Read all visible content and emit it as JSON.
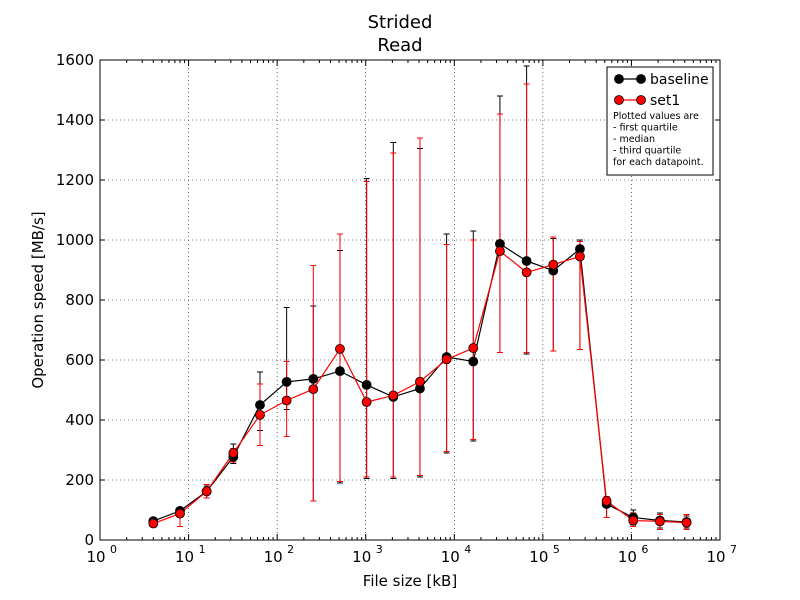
{
  "chart_data": {
    "type": "line",
    "title": [
      "Strided",
      "Read"
    ],
    "xlabel": "File size [kB]",
    "ylabel": "Operation speed [MB/s]",
    "xscale": "log",
    "xlim": [
      1,
      10000000
    ],
    "ylim": [
      0,
      1600
    ],
    "x_ticks": [
      1,
      10,
      100,
      1000,
      10000,
      100000,
      1000000,
      10000000
    ],
    "x_tick_labels": [
      {
        "base": "10",
        "exp": "0"
      },
      {
        "base": "10",
        "exp": "1"
      },
      {
        "base": "10",
        "exp": "2"
      },
      {
        "base": "10",
        "exp": "3"
      },
      {
        "base": "10",
        "exp": "4"
      },
      {
        "base": "10",
        "exp": "5"
      },
      {
        "base": "10",
        "exp": "6"
      },
      {
        "base": "10",
        "exp": "7"
      }
    ],
    "y_ticks": [
      0,
      200,
      400,
      600,
      800,
      1000,
      1200,
      1400,
      1600
    ],
    "grid": true,
    "legend_position": "top-right",
    "legend_note": [
      "Plotted values are",
      " - first quartile",
      " - median",
      " - third quartile",
      "for each datapoint."
    ],
    "x": [
      4,
      8,
      16,
      32,
      64,
      128,
      256,
      512,
      1024,
      2048,
      4096,
      8192,
      16384,
      32768,
      65536,
      131072,
      262144,
      524288,
      1048576,
      2097152,
      4194304
    ],
    "series": [
      {
        "name": "baseline",
        "color": "#000000",
        "median": [
          63,
          97,
          162,
          277,
          450,
          527,
          537,
          563,
          517,
          477,
          505,
          610,
          595,
          987,
          930,
          898,
          970,
          120,
          75,
          65,
          60
        ],
        "q1": [
          55,
          85,
          140,
          255,
          365,
          435,
          130,
          190,
          205,
          205,
          210,
          290,
          330,
          625,
          620,
          630,
          635,
          75,
          50,
          40,
          40
        ],
        "q3": [
          70,
          105,
          180,
          320,
          560,
          775,
          780,
          965,
          1205,
          1325,
          1305,
          1020,
          1030,
          1480,
          1580,
          1005,
          1000,
          140,
          100,
          90,
          80
        ]
      },
      {
        "name": "set1",
        "color": "#ff0000",
        "median": [
          55,
          88,
          162,
          290,
          417,
          465,
          503,
          637,
          460,
          482,
          528,
          602,
          640,
          963,
          892,
          918,
          945,
          130,
          65,
          62,
          58
        ],
        "q1": [
          45,
          45,
          140,
          260,
          315,
          345,
          130,
          195,
          210,
          210,
          215,
          295,
          335,
          625,
          625,
          630,
          635,
          75,
          45,
          35,
          35
        ],
        "q3": [
          65,
          100,
          185,
          305,
          520,
          595,
          915,
          1020,
          1195,
          1290,
          1340,
          985,
          1000,
          1420,
          1520,
          1010,
          995,
          145,
          90,
          85,
          85
        ]
      }
    ]
  }
}
